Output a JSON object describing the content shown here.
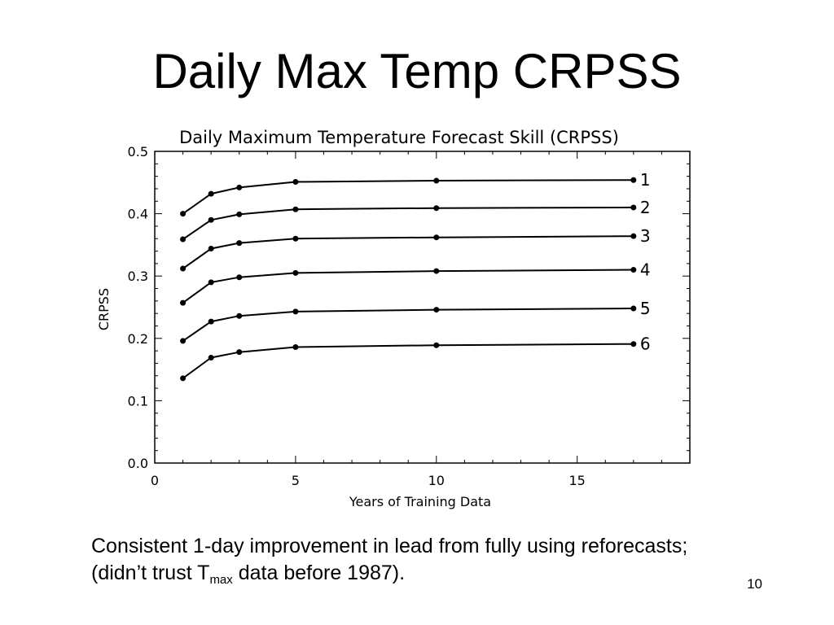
{
  "slide": {
    "title": "Daily Max Temp CRPSS",
    "caption_before": "Consistent 1-day improvement in lead from fully using reforecasts;",
    "caption_line2_prefix": "(didn’t trust T",
    "caption_subscript": "max",
    "caption_line2_suffix": " data before 1987).",
    "slide_number": "10"
  },
  "chart_data": {
    "type": "line",
    "title": "Daily Maximum Temperature Forecast Skill (CRPSS)",
    "xlabel": "Years of Training Data",
    "ylabel": "CRPSS",
    "xlim": [
      0,
      19
    ],
    "ylim": [
      0,
      0.5
    ],
    "x_ticks": [
      0,
      5,
      10,
      15
    ],
    "x_tick_labels": [
      "0",
      "5",
      "10",
      "15"
    ],
    "y_ticks": [
      0,
      0.1,
      0.2,
      0.3,
      0.4,
      0.5
    ],
    "y_tick_labels": [
      "0.0",
      "0.1",
      "0.2",
      "0.3",
      "0.4",
      "0.5"
    ],
    "grid": false,
    "x": [
      1,
      2,
      3,
      5,
      10,
      17
    ],
    "series": [
      {
        "label": "1",
        "values": [
          0.4,
          0.432,
          0.442,
          0.451,
          0.453,
          0.454
        ]
      },
      {
        "label": "2",
        "values": [
          0.359,
          0.39,
          0.399,
          0.407,
          0.409,
          0.41
        ]
      },
      {
        "label": "3",
        "values": [
          0.312,
          0.344,
          0.353,
          0.36,
          0.362,
          0.364
        ]
      },
      {
        "label": "4",
        "values": [
          0.257,
          0.29,
          0.298,
          0.305,
          0.308,
          0.31
        ]
      },
      {
        "label": "5",
        "values": [
          0.196,
          0.227,
          0.236,
          0.243,
          0.246,
          0.248
        ]
      },
      {
        "label": "6",
        "values": [
          0.136,
          0.169,
          0.178,
          0.186,
          0.189,
          0.191
        ]
      }
    ],
    "line_color": "#000000"
  }
}
